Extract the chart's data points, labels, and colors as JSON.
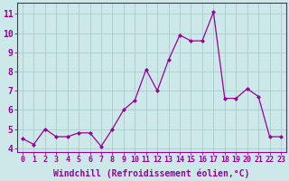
{
  "x": [
    0,
    1,
    2,
    3,
    4,
    5,
    6,
    7,
    8,
    9,
    10,
    11,
    12,
    13,
    14,
    15,
    16,
    17,
    18,
    19,
    20,
    21,
    22,
    23
  ],
  "y": [
    4.5,
    4.2,
    5.0,
    4.6,
    4.6,
    4.8,
    4.8,
    4.1,
    5.0,
    6.0,
    6.5,
    8.1,
    7.0,
    8.6,
    9.9,
    9.6,
    9.6,
    11.1,
    6.6,
    6.6,
    7.1,
    6.7,
    4.6,
    4.6
  ],
  "line_color": "#990099",
  "marker": "D",
  "marker_size": 2,
  "background_color": "#cce8e8",
  "grid_color": "#aacccc",
  "xlabel": "Windchill (Refroidissement éolien,°C)",
  "xlabel_color": "#990099",
  "xlabel_fontsize": 7,
  "ylim": [
    3.8,
    11.6
  ],
  "xlim": [
    -0.5,
    23.5
  ],
  "xtick_fontsize": 6,
  "ytick_fontsize": 7,
  "tick_color": "#990099",
  "spine_color": "#990099",
  "yticks": [
    4,
    5,
    6,
    7,
    8,
    9,
    10,
    11
  ],
  "linewidth": 0.9,
  "figwidth": 3.2,
  "figheight": 2.0,
  "dpi": 100
}
